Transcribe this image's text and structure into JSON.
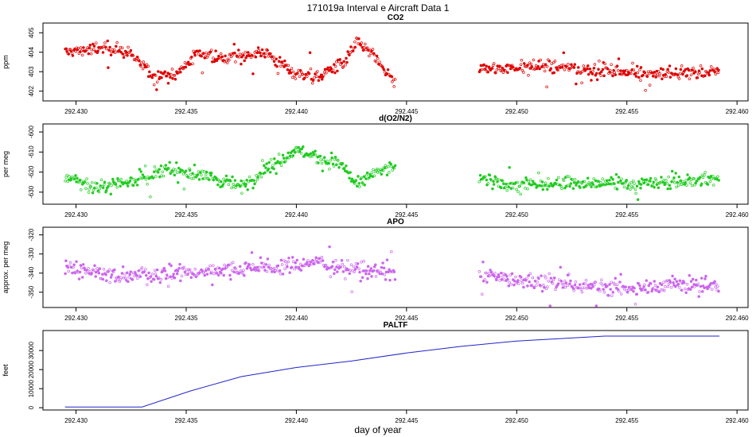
{
  "title": "171019a   Interval e Aircraft Data 1",
  "xlabel": "day of year",
  "x_ticks": [
    "292.430",
    "292.435",
    "292.440",
    "292.445",
    "292.450",
    "292.455",
    "292.460"
  ],
  "colors": {
    "co2": "#e00000",
    "o2n2": "#22cc22",
    "apo": "#cc66ee",
    "paltf": "#2222cc"
  },
  "chart_data": [
    {
      "type": "scatter",
      "title": "CO2",
      "ylabel": "ppm",
      "xlim": [
        292.4285,
        292.4605
      ],
      "ylim": [
        401.5,
        405.5
      ],
      "y_ticks": [
        402,
        403,
        404,
        405
      ],
      "y_tick_labels": [
        "402",
        "403",
        "404",
        "405"
      ],
      "series": [
        {
          "name": "CO2",
          "x_range": [
            292.4295,
            292.4592
          ],
          "gap": [
            292.4445,
            292.4483
          ],
          "profile": [
            [
              292.4295,
              404.0
            ],
            [
              292.431,
              404.2
            ],
            [
              292.432,
              404.1
            ],
            [
              292.4325,
              403.9
            ],
            [
              292.4335,
              402.8
            ],
            [
              292.4345,
              402.8
            ],
            [
              292.4355,
              403.9
            ],
            [
              292.437,
              403.7
            ],
            [
              292.4385,
              404.0
            ],
            [
              292.44,
              402.9
            ],
            [
              292.441,
              402.8
            ],
            [
              292.4422,
              403.5
            ],
            [
              292.4428,
              404.6
            ],
            [
              292.4435,
              403.8
            ],
            [
              292.4445,
              402.4
            ],
            [
              292.4483,
              403.1
            ],
            [
              292.451,
              403.3
            ],
            [
              292.4535,
              403.1
            ],
            [
              292.456,
              402.9
            ],
            [
              292.4592,
              403.0
            ]
          ],
          "noise": 0.32,
          "point_count": 760
        }
      ]
    },
    {
      "type": "scatter",
      "title": "d(O2/N2)",
      "ylabel": "per meg",
      "xlim": [
        292.4285,
        292.4605
      ],
      "ylim": [
        -636,
        -596
      ],
      "y_ticks": [
        -630,
        -620,
        -610,
        -600
      ],
      "y_tick_labels": [
        "-630",
        "-620",
        "-610",
        "-600"
      ],
      "series": [
        {
          "name": "d(O2/N2)",
          "x_range": [
            292.4295,
            292.4592
          ],
          "gap": [
            292.4445,
            292.4483
          ],
          "profile": [
            [
              292.4295,
              -622
            ],
            [
              292.431,
              -628
            ],
            [
              292.4325,
              -624
            ],
            [
              292.4335,
              -622
            ],
            [
              292.434,
              -619
            ],
            [
              292.436,
              -622
            ],
            [
              292.4375,
              -627
            ],
            [
              292.439,
              -616
            ],
            [
              292.44,
              -609
            ],
            [
              292.441,
              -613
            ],
            [
              292.442,
              -616
            ],
            [
              292.4428,
              -627
            ],
            [
              292.4435,
              -620
            ],
            [
              292.4445,
              -618
            ],
            [
              292.4483,
              -622
            ],
            [
              292.4495,
              -627
            ],
            [
              292.452,
              -625
            ],
            [
              292.4545,
              -626
            ],
            [
              292.457,
              -625
            ],
            [
              292.4592,
              -624
            ]
          ],
          "noise": 3.2,
          "point_count": 760
        }
      ]
    },
    {
      "type": "scatter",
      "title": "APO",
      "ylabel": "approx. per meg",
      "xlim": [
        292.4285,
        292.4605
      ],
      "ylim": [
        -358,
        -316
      ],
      "y_ticks": [
        -350,
        -340,
        -330,
        -320
      ],
      "y_tick_labels": [
        "-350",
        "-340",
        "-330",
        "-320"
      ],
      "series": [
        {
          "name": "APO",
          "x_range": [
            292.4295,
            292.4592
          ],
          "gap": [
            292.4445,
            292.4483
          ],
          "profile": [
            [
              292.4295,
              -336
            ],
            [
              292.432,
              -342
            ],
            [
              292.4345,
              -340
            ],
            [
              292.437,
              -338
            ],
            [
              292.4395,
              -336
            ],
            [
              292.441,
              -334
            ],
            [
              292.4425,
              -338
            ],
            [
              292.4445,
              -340
            ],
            [
              292.4483,
              -340
            ],
            [
              292.45,
              -344
            ],
            [
              292.4525,
              -346
            ],
            [
              292.455,
              -348
            ],
            [
              292.457,
              -346
            ],
            [
              292.4592,
              -347
            ]
          ],
          "noise": 3.8,
          "point_count": 760
        }
      ]
    },
    {
      "type": "line",
      "title": "PALTF",
      "ylabel": "feet",
      "xlim": [
        292.4285,
        292.4605
      ],
      "ylim": [
        -1200,
        40500
      ],
      "y_ticks": [
        0,
        10000,
        20000,
        30000
      ],
      "y_tick_labels": [
        "0",
        "10000",
        "20000",
        "30000"
      ],
      "series": [
        {
          "name": "PALTF",
          "x": [
            292.4295,
            292.433,
            292.4352,
            292.4375,
            292.44,
            292.4425,
            292.445,
            292.4475,
            292.45,
            292.4525,
            292.454,
            292.4592
          ],
          "y": [
            400,
            400,
            8800,
            16300,
            21100,
            24500,
            28700,
            32200,
            35000,
            36600,
            37600,
            37600
          ]
        }
      ]
    }
  ]
}
